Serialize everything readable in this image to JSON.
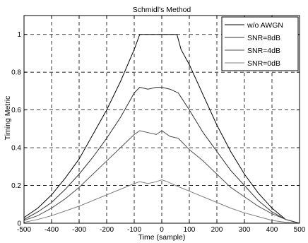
{
  "chart_data": {
    "type": "line",
    "title": "Schmidl's Method",
    "xlabel": "Time (sample)",
    "ylabel": "Timing Metric",
    "xlim": [
      -500,
      500
    ],
    "ylim": [
      0,
      1.1
    ],
    "xticks": [
      -500,
      -400,
      -300,
      -200,
      -100,
      0,
      100,
      200,
      300,
      400,
      500
    ],
    "yticks": [
      0,
      0.2,
      0.4,
      0.6,
      0.8,
      1
    ],
    "grid": "dashed",
    "legend_position": "top-right",
    "series": [
      {
        "name": "w/o AWGN",
        "color": "#000000",
        "points": [
          [
            -500,
            0.03
          ],
          [
            -450,
            0.08
          ],
          [
            -400,
            0.15
          ],
          [
            -350,
            0.24
          ],
          [
            -300,
            0.34
          ],
          [
            -250,
            0.47
          ],
          [
            -200,
            0.6
          ],
          [
            -150,
            0.75
          ],
          [
            -100,
            0.92
          ],
          [
            -80,
            1.0
          ],
          [
            55,
            1.0
          ],
          [
            70,
            0.92
          ],
          [
            100,
            0.84
          ],
          [
            150,
            0.68
          ],
          [
            200,
            0.52
          ],
          [
            250,
            0.38
          ],
          [
            300,
            0.26
          ],
          [
            350,
            0.16
          ],
          [
            400,
            0.08
          ],
          [
            450,
            0.02
          ],
          [
            500,
            0.0
          ]
        ]
      },
      {
        "name": "SNR=8dB",
        "color": "#303030",
        "points": [
          [
            -500,
            0.02
          ],
          [
            -450,
            0.06
          ],
          [
            -400,
            0.11
          ],
          [
            -350,
            0.18
          ],
          [
            -300,
            0.26
          ],
          [
            -250,
            0.35
          ],
          [
            -200,
            0.45
          ],
          [
            -150,
            0.56
          ],
          [
            -100,
            0.69
          ],
          [
            -80,
            0.72
          ],
          [
            -50,
            0.71
          ],
          [
            -20,
            0.72
          ],
          [
            0,
            0.72
          ],
          [
            30,
            0.71
          ],
          [
            60,
            0.69
          ],
          [
            100,
            0.6
          ],
          [
            150,
            0.48
          ],
          [
            200,
            0.38
          ],
          [
            250,
            0.28
          ],
          [
            300,
            0.2
          ],
          [
            350,
            0.12
          ],
          [
            400,
            0.06
          ],
          [
            450,
            0.02
          ],
          [
            500,
            0.0
          ]
        ]
      },
      {
        "name": "SNR=4dB",
        "color": "#505050",
        "points": [
          [
            -500,
            0.015
          ],
          [
            -450,
            0.04
          ],
          [
            -400,
            0.08
          ],
          [
            -350,
            0.13
          ],
          [
            -300,
            0.19
          ],
          [
            -250,
            0.26
          ],
          [
            -200,
            0.33
          ],
          [
            -150,
            0.4
          ],
          [
            -100,
            0.47
          ],
          [
            -80,
            0.49
          ],
          [
            -50,
            0.48
          ],
          [
            -20,
            0.47
          ],
          [
            0,
            0.49
          ],
          [
            30,
            0.46
          ],
          [
            60,
            0.45
          ],
          [
            100,
            0.39
          ],
          [
            150,
            0.33
          ],
          [
            200,
            0.26
          ],
          [
            250,
            0.19
          ],
          [
            300,
            0.14
          ],
          [
            350,
            0.09
          ],
          [
            400,
            0.05
          ],
          [
            450,
            0.02
          ],
          [
            500,
            0.0
          ]
        ]
      },
      {
        "name": "SNR=0dB",
        "color": "#808080",
        "points": [
          [
            -500,
            0.005
          ],
          [
            -450,
            0.02
          ],
          [
            -400,
            0.04
          ],
          [
            -350,
            0.065
          ],
          [
            -300,
            0.09
          ],
          [
            -250,
            0.12
          ],
          [
            -200,
            0.15
          ],
          [
            -150,
            0.18
          ],
          [
            -100,
            0.21
          ],
          [
            -80,
            0.22
          ],
          [
            -50,
            0.21
          ],
          [
            -20,
            0.22
          ],
          [
            0,
            0.23
          ],
          [
            20,
            0.22
          ],
          [
            50,
            0.2
          ],
          [
            100,
            0.17
          ],
          [
            150,
            0.14
          ],
          [
            200,
            0.11
          ],
          [
            250,
            0.08
          ],
          [
            300,
            0.055
          ],
          [
            350,
            0.035
          ],
          [
            400,
            0.015
          ],
          [
            450,
            0.005
          ],
          [
            500,
            0.0
          ]
        ]
      }
    ]
  }
}
